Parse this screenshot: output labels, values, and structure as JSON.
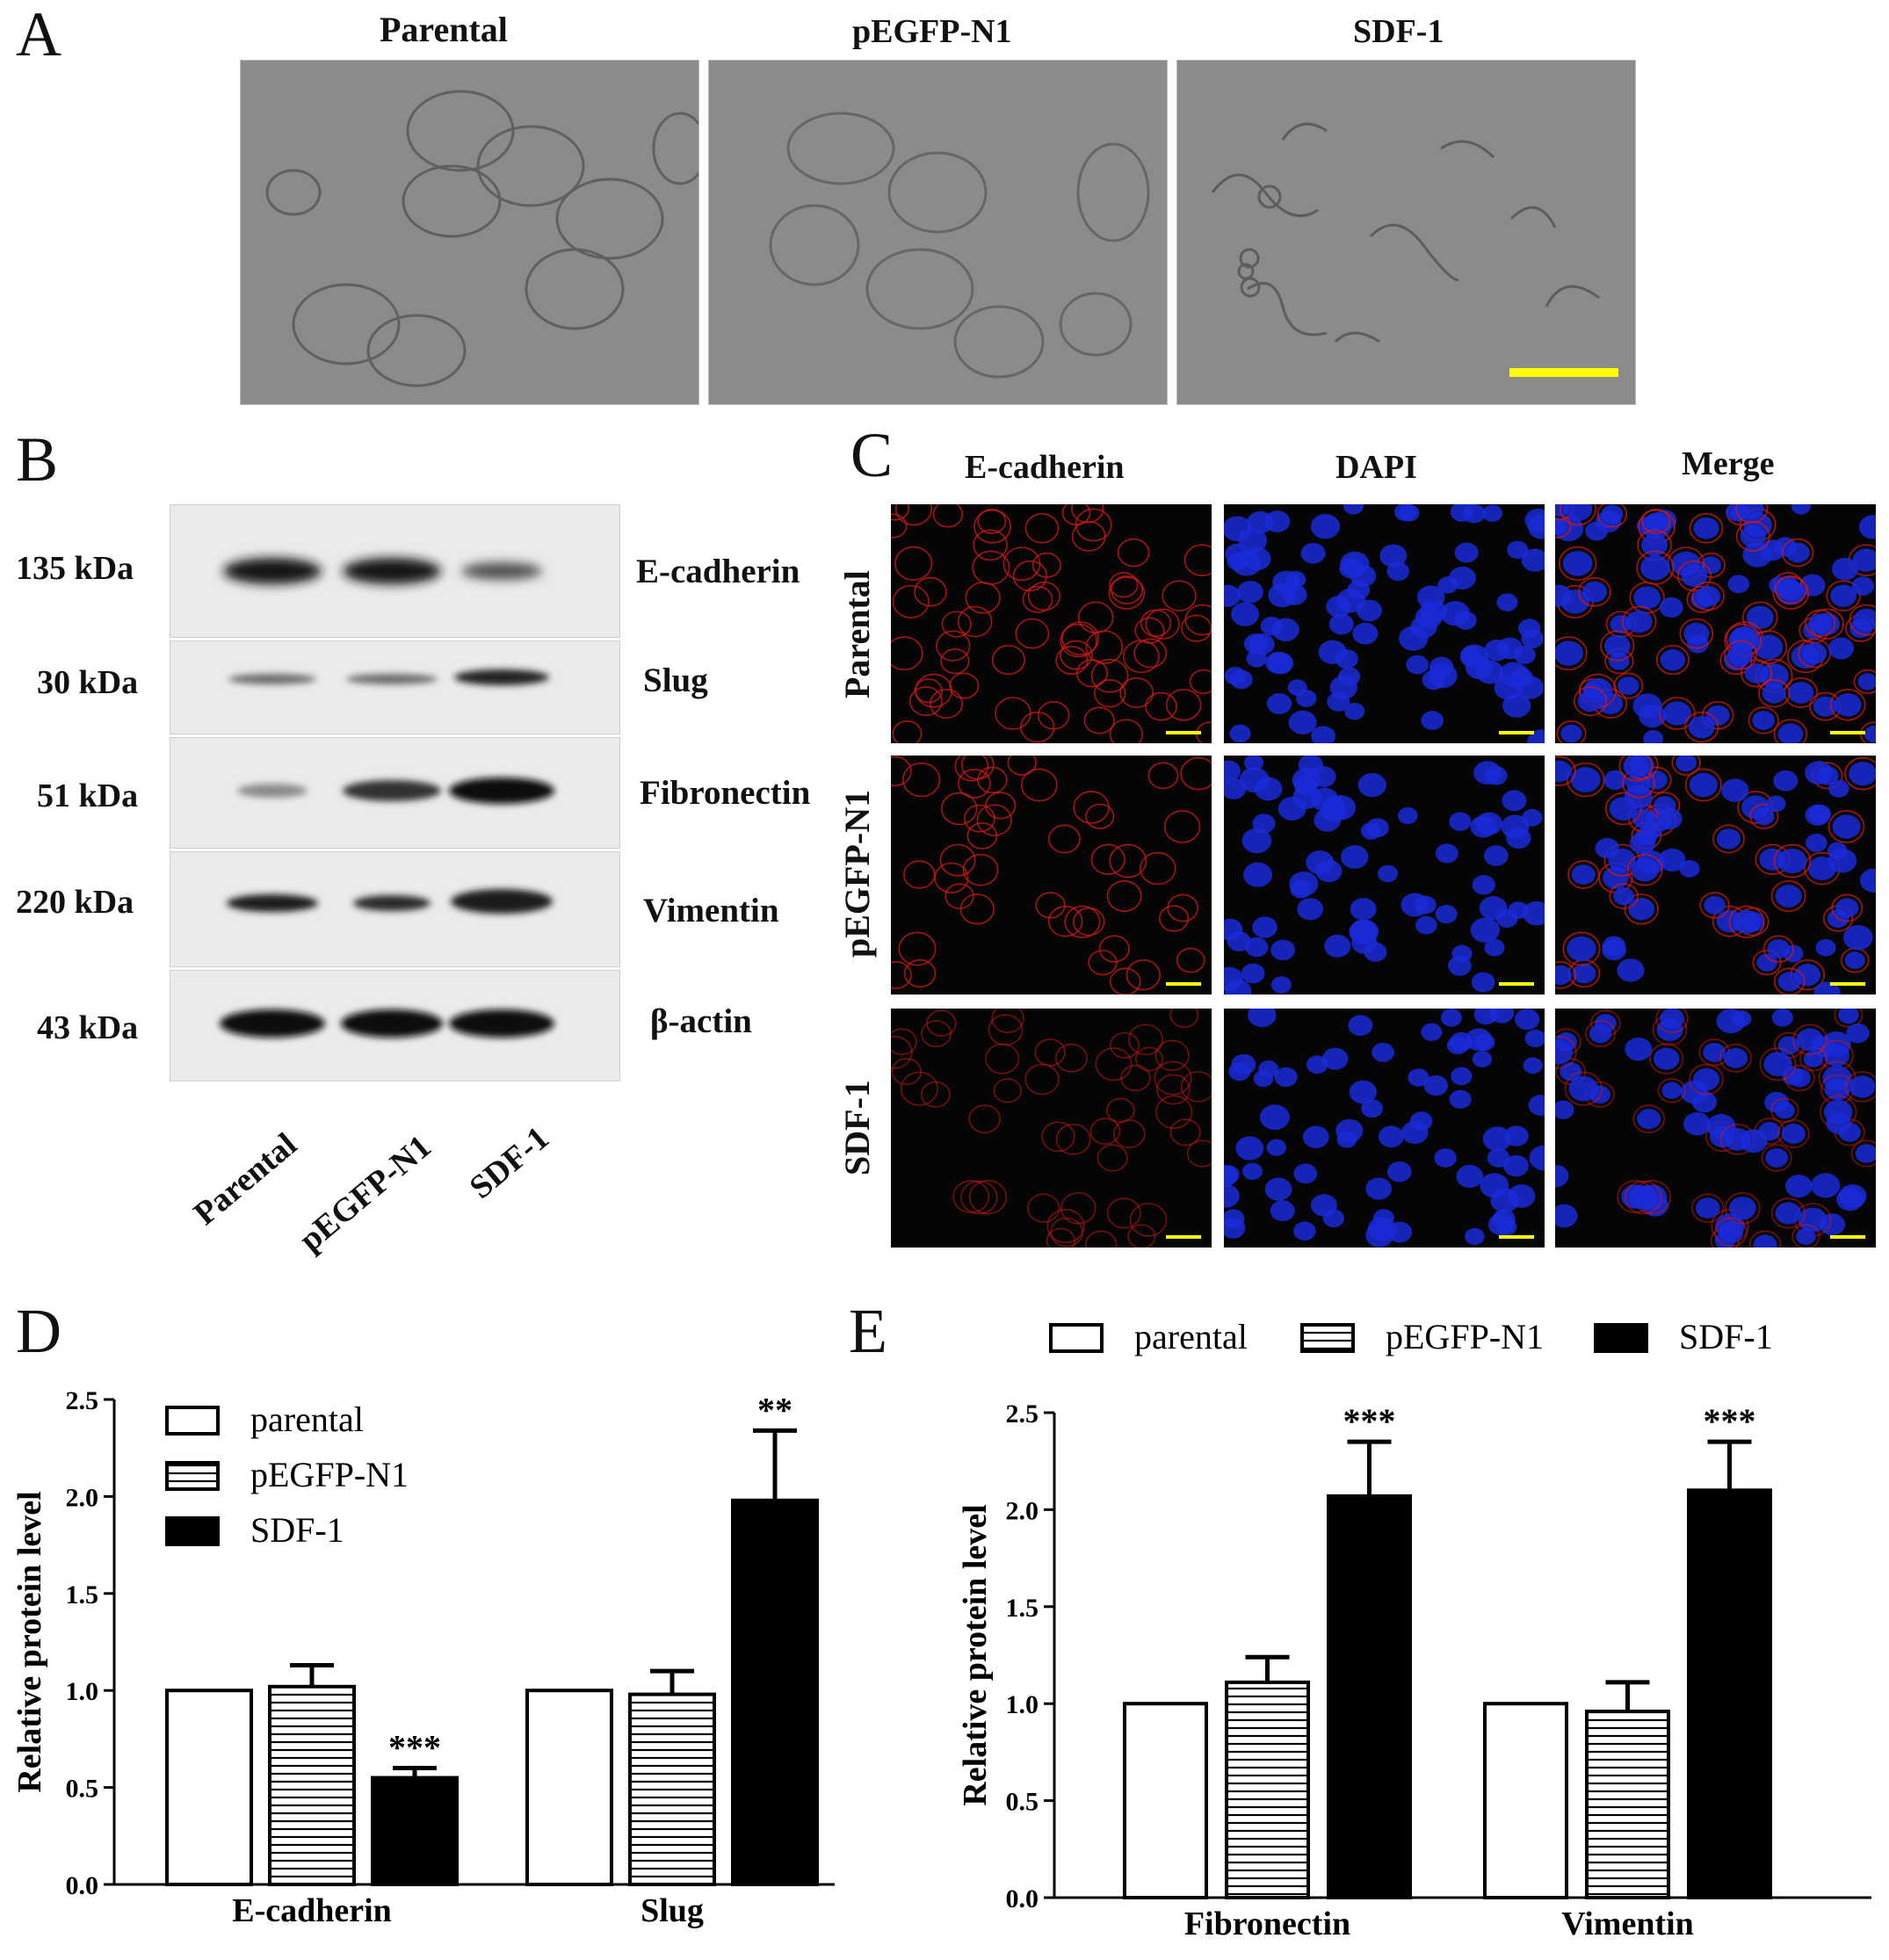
{
  "panels": {
    "a": "A",
    "b": "B",
    "c": "C",
    "d": "D",
    "e": "E"
  },
  "panel_a": {
    "titles": [
      "Parental",
      "pEGFP-N1",
      "SDF-1"
    ],
    "scale_bar_color": "#ffff00"
  },
  "panel_b": {
    "markers": [
      "135 kDa",
      "30 kDa",
      "51 kDa",
      "220 kDa",
      "43 kDa"
    ],
    "proteins": [
      "E-cadherin",
      "Slug",
      "Fibronectin",
      "Vimentin",
      "β-actin"
    ],
    "lanes": [
      "Parental",
      "pEGFP-N1",
      "SDF-1"
    ]
  },
  "panel_c": {
    "columns": [
      "E-cadherin",
      "DAPI",
      "Merge"
    ],
    "rows": [
      "Parental",
      "pEGFP-N1",
      "SDF-1"
    ],
    "colors": {
      "ecad": "#d01818",
      "dapi": "#1a2ad8",
      "scale": "#ffff00"
    }
  },
  "chart_data": [
    {
      "panel": "D",
      "type": "bar",
      "categories": [
        "E-cadherin",
        "Slug"
      ],
      "series": [
        {
          "name": "parental",
          "values": [
            1.0,
            1.0
          ],
          "errors": [
            0,
            0
          ],
          "fill": "white"
        },
        {
          "name": "pEGFP-N1",
          "values": [
            1.02,
            0.98
          ],
          "errors": [
            0.11,
            0.12
          ],
          "fill": "striped"
        },
        {
          "name": "SDF-1",
          "values": [
            0.55,
            1.98
          ],
          "errors": [
            0.05,
            0.36
          ],
          "fill": "black"
        }
      ],
      "significance": [
        "***",
        "**"
      ],
      "ylabel": "Relative protein level",
      "ylim": [
        0.0,
        2.5
      ],
      "yticks": [
        "0.0",
        "0.5",
        "1.0",
        "1.5",
        "2.0",
        "2.5"
      ],
      "legend_position": "top-left"
    },
    {
      "panel": "E",
      "type": "bar",
      "categories": [
        "Fibronectin",
        "Vimentin"
      ],
      "series": [
        {
          "name": "parental",
          "values": [
            1.0,
            1.0
          ],
          "errors": [
            0,
            0
          ],
          "fill": "white"
        },
        {
          "name": "pEGFP-N1",
          "values": [
            1.11,
            0.96
          ],
          "errors": [
            0.13,
            0.15
          ],
          "fill": "striped"
        },
        {
          "name": "SDF-1",
          "values": [
            2.07,
            2.1
          ],
          "errors": [
            0.28,
            0.25
          ],
          "fill": "black"
        }
      ],
      "significance": [
        "***",
        "***"
      ],
      "ylabel": "Relative protein level",
      "ylim": [
        0.0,
        2.5
      ],
      "yticks": [
        "0.0",
        "0.5",
        "1.0",
        "1.5",
        "2.0",
        "2.5"
      ],
      "legend_position": "top"
    }
  ]
}
